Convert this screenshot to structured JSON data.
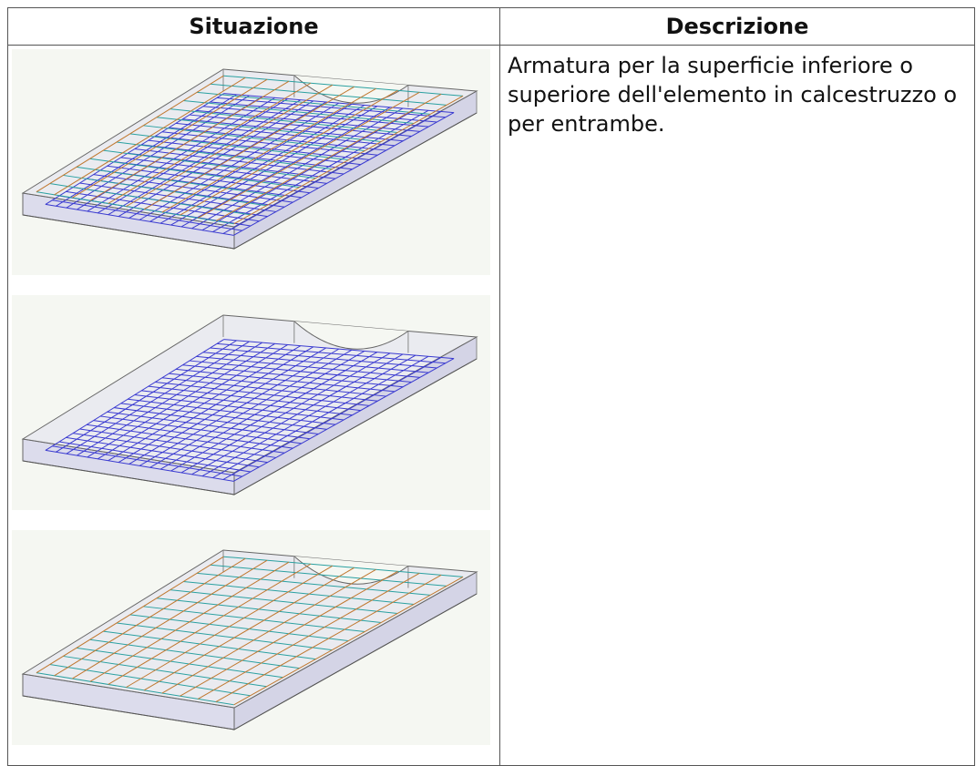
{
  "table": {
    "header": [
      "Situazione",
      "Descrizione"
    ],
    "rows": [
      [
        null,
        "Armatura per la superficie inferiore o superiore dell'elemento in calcestruzzo o per entrambe."
      ]
    ]
  }
}
